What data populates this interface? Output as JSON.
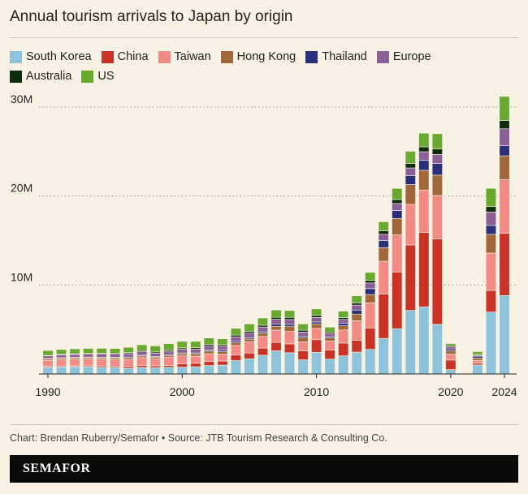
{
  "title": "Annual tourism arrivals to Japan by origin",
  "credit": "Chart: Brendan Ruberry/Semafor • Source: JTB Tourism Research & Consulting Co.",
  "brand": "SEMAFOR",
  "colors": {
    "background": "#f7f2e3",
    "South Korea": "#8fc3dc",
    "China": "#c83227",
    "Taiwan": "#f28b85",
    "Hong Kong": "#a0683a",
    "Thailand": "#2a2f79",
    "Europe": "#8a5f95",
    "Australia": "#0e2c0c",
    "US": "#6aa92f"
  },
  "chart_data": {
    "type": "bar",
    "stacked": true,
    "title": "Annual tourism arrivals to Japan by origin",
    "xlabel": "",
    "ylabel": "",
    "ylim": [
      0,
      30000000
    ],
    "yticks": [
      10000000,
      20000000,
      30000000
    ],
    "yticklabels": [
      "10M",
      "20M",
      "30M"
    ],
    "xticks": [
      1990,
      2000,
      2010,
      2020,
      2024
    ],
    "grid": "horizontal dotted",
    "legend": "top",
    "categories": [
      1990,
      1991,
      1992,
      1993,
      1994,
      1995,
      1996,
      1997,
      1998,
      1999,
      2000,
      2001,
      2002,
      2003,
      2004,
      2005,
      2006,
      2007,
      2008,
      2009,
      2010,
      2011,
      2012,
      2013,
      2014,
      2015,
      2016,
      2017,
      2018,
      2019,
      2020,
      2021,
      2022,
      2023,
      2024
    ],
    "series": [
      {
        "name": "South Korea",
        "values": [
          740000,
          800000,
          820000,
          800000,
          760000,
          730000,
          650000,
          740000,
          710000,
          760000,
          770000,
          810000,
          950000,
          1000000,
          1500000,
          1700000,
          2100000,
          2600000,
          2380000,
          1590000,
          2440000,
          1660000,
          2040000,
          2460000,
          2760000,
          4000000,
          5090000,
          7140000,
          7540000,
          5580000,
          490000,
          19000,
          1010000,
          6960000,
          8820000
        ]
      },
      {
        "name": "China",
        "values": [
          100000,
          100000,
          100000,
          120000,
          140000,
          150000,
          190000,
          200000,
          200000,
          210000,
          350000,
          390000,
          450000,
          450000,
          620000,
          650000,
          810000,
          940000,
          1000000,
          1010000,
          1410000,
          1040000,
          1430000,
          1310000,
          2410000,
          4990000,
          6370000,
          7360000,
          8380000,
          9590000,
          1070000,
          42000,
          189000,
          2430000,
          6980000
        ]
      },
      {
        "name": "Taiwan",
        "values": [
          700000,
          720000,
          740000,
          740000,
          760000,
          740000,
          780000,
          900000,
          800000,
          930000,
          910000,
          800000,
          880000,
          790000,
          1080000,
          1270000,
          1310000,
          1390000,
          1390000,
          1020000,
          1270000,
          990000,
          1470000,
          2210000,
          2830000,
          3680000,
          4170000,
          4560000,
          4760000,
          4890000,
          690000,
          5000,
          330000,
          4200000,
          6040000
        ]
      },
      {
        "name": "Hong Kong",
        "values": [
          130000,
          140000,
          150000,
          170000,
          160000,
          170000,
          190000,
          180000,
          160000,
          180000,
          230000,
          260000,
          290000,
          260000,
          300000,
          300000,
          350000,
          430000,
          550000,
          450000,
          510000,
          360000,
          480000,
          750000,
          930000,
          1520000,
          1840000,
          2230000,
          2210000,
          2290000,
          350000,
          1000,
          270000,
          2110000,
          2680000
        ]
      },
      {
        "name": "Thailand",
        "values": [
          60000,
          60000,
          60000,
          70000,
          70000,
          80000,
          90000,
          90000,
          80000,
          90000,
          100000,
          110000,
          130000,
          180000,
          180000,
          150000,
          170000,
          230000,
          240000,
          180000,
          210000,
          150000,
          260000,
          450000,
          660000,
          800000,
          900000,
          990000,
          1130000,
          1320000,
          220000,
          2000,
          200000,
          1000000,
          1140000
        ]
      },
      {
        "name": "Europe",
        "values": [
          300000,
          320000,
          330000,
          330000,
          340000,
          350000,
          380000,
          390000,
          380000,
          390000,
          420000,
          430000,
          440000,
          440000,
          490000,
          520000,
          540000,
          560000,
          560000,
          460000,
          510000,
          330000,
          450000,
          560000,
          640000,
          710000,
          790000,
          880000,
          960000,
          1000000,
          240000,
          20000,
          100000,
          1500000,
          1900000
        ]
      },
      {
        "name": "Australia",
        "values": [
          50000,
          60000,
          70000,
          70000,
          80000,
          90000,
          110000,
          130000,
          140000,
          150000,
          150000,
          160000,
          170000,
          170000,
          190000,
          210000,
          200000,
          220000,
          240000,
          210000,
          230000,
          160000,
          210000,
          240000,
          300000,
          380000,
          450000,
          500000,
          550000,
          620000,
          140000,
          2000,
          90000,
          610000,
          920000
        ]
      },
      {
        "name": "US",
        "values": [
          550000,
          550000,
          550000,
          570000,
          570000,
          550000,
          610000,
          650000,
          680000,
          700000,
          730000,
          700000,
          730000,
          660000,
          770000,
          820000,
          810000,
          820000,
          770000,
          700000,
          730000,
          570000,
          720000,
          800000,
          890000,
          1030000,
          1240000,
          1370000,
          1530000,
          1720000,
          220000,
          20000,
          320000,
          2050000,
          2720000
        ]
      }
    ]
  }
}
